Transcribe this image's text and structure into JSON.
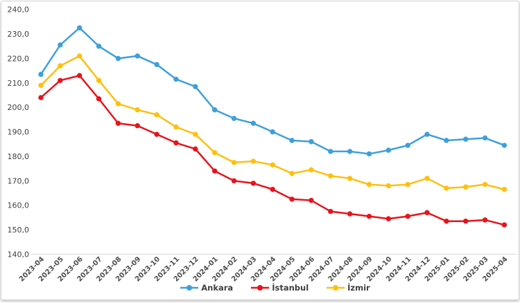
{
  "chart_data": {
    "type": "line",
    "x": [
      "2023-04",
      "2023-05",
      "2023-06",
      "2023-07",
      "2023-08",
      "2023-09",
      "2023-10",
      "2023-11",
      "2023-12",
      "2024-01",
      "2024-02",
      "2024-03",
      "2024-04",
      "2024-05",
      "2024-06",
      "2024-07",
      "2024-08",
      "2024-09",
      "2024-10",
      "2024-11",
      "2024-12",
      "2025-01",
      "2025-02",
      "2025-03",
      "2025-04"
    ],
    "series": [
      {
        "name": "Ankara",
        "color": "#3da0db",
        "values": [
          213.5,
          225.5,
          232.5,
          225.0,
          220.0,
          221.0,
          217.5,
          211.5,
          208.5,
          199.0,
          195.5,
          193.5,
          190.0,
          186.5,
          186.0,
          182.0,
          182.0,
          181.0,
          182.5,
          184.5,
          189.0,
          186.5,
          187.0,
          187.5,
          184.5
        ]
      },
      {
        "name": "İstanbul",
        "color": "#e8131b",
        "values": [
          204.0,
          211.0,
          213.0,
          203.5,
          193.5,
          192.5,
          189.0,
          185.5,
          183.0,
          174.0,
          170.0,
          169.0,
          166.5,
          162.5,
          162.0,
          157.5,
          156.5,
          155.5,
          154.5,
          155.5,
          157.0,
          153.5,
          153.5,
          154.0,
          152.0
        ]
      },
      {
        "name": "İzmir",
        "color": "#fec00e",
        "values": [
          209.0,
          217.0,
          221.0,
          211.0,
          201.5,
          199.0,
          197.0,
          192.0,
          189.0,
          181.5,
          177.5,
          178.0,
          176.5,
          173.0,
          174.5,
          172.0,
          171.0,
          168.5,
          168.0,
          168.5,
          171.0,
          167.0,
          167.5,
          168.5,
          166.5
        ]
      }
    ],
    "ylim": [
      140,
      240
    ],
    "y_ticks": [
      {
        "value": 240,
        "label": "240,0"
      },
      {
        "value": 230,
        "label": "230,0"
      },
      {
        "value": 220,
        "label": "220,0"
      },
      {
        "value": 210,
        "label": "210,0"
      },
      {
        "value": 200,
        "label": "200,0"
      },
      {
        "value": 190,
        "label": "190,0"
      },
      {
        "value": 180,
        "label": "180,0"
      },
      {
        "value": 170,
        "label": "170,0"
      },
      {
        "value": 160,
        "label": "160,0"
      },
      {
        "value": 150,
        "label": "150,0"
      },
      {
        "value": 140,
        "label": "140,0"
      }
    ],
    "grid": "none",
    "legend_position": "bottom"
  },
  "colors": {
    "axis_line": "#d9d9d9",
    "border": "#d0d0d0",
    "tick_text": "#4a4a4a",
    "background": "#ffffff"
  },
  "legend": {
    "items": [
      {
        "label": "Ankara"
      },
      {
        "label": "İstanbul"
      },
      {
        "label": "İzmir"
      }
    ]
  }
}
